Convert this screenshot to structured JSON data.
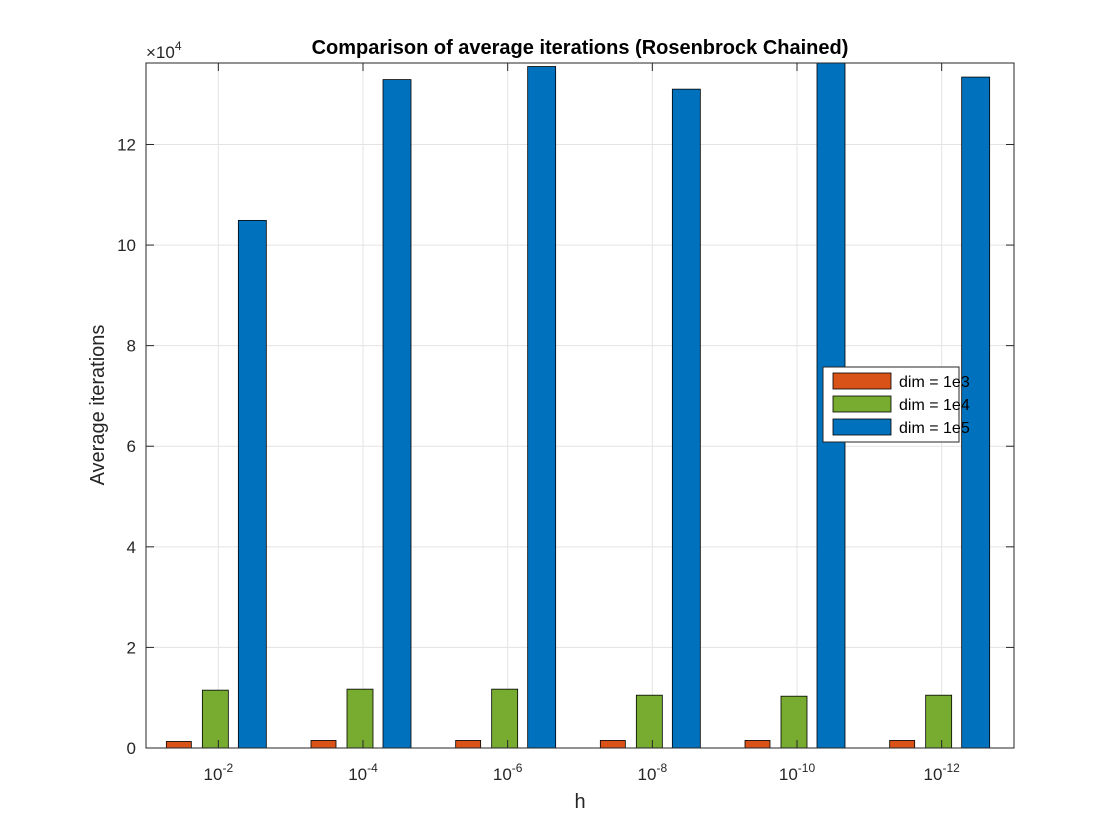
{
  "chart_data": {
    "type": "bar",
    "title": "Comparison of average iterations (Rosenbrock Chained)",
    "xlabel": "h",
    "ylabel": "Average iterations",
    "categories": [
      {
        "base": "10",
        "exp": "-2"
      },
      {
        "base": "10",
        "exp": "-4"
      },
      {
        "base": "10",
        "exp": "-6"
      },
      {
        "base": "10",
        "exp": "-8"
      },
      {
        "base": "10",
        "exp": "-10"
      },
      {
        "base": "10",
        "exp": "-12"
      }
    ],
    "exponent_label": {
      "prefix": "×10",
      "exp": "4"
    },
    "y_scale_factor": 10000,
    "ylim": [
      0,
      136200
    ],
    "yticks": [
      0,
      2,
      4,
      6,
      8,
      10,
      12
    ],
    "grid": true,
    "legend_position": "right",
    "series": [
      {
        "name": "dim = 1e3",
        "color": "#D95319",
        "values": [
          1300,
          1500,
          1500,
          1500,
          1500,
          1500
        ]
      },
      {
        "name": "dim = 1e4",
        "color": "#77AC30",
        "values": [
          11500,
          11700,
          11700,
          10500,
          10300,
          10500
        ]
      },
      {
        "name": "dim = 1e5",
        "color": "#0072BD",
        "values": [
          104900,
          132900,
          135500,
          131000,
          136200,
          133400
        ]
      }
    ]
  }
}
